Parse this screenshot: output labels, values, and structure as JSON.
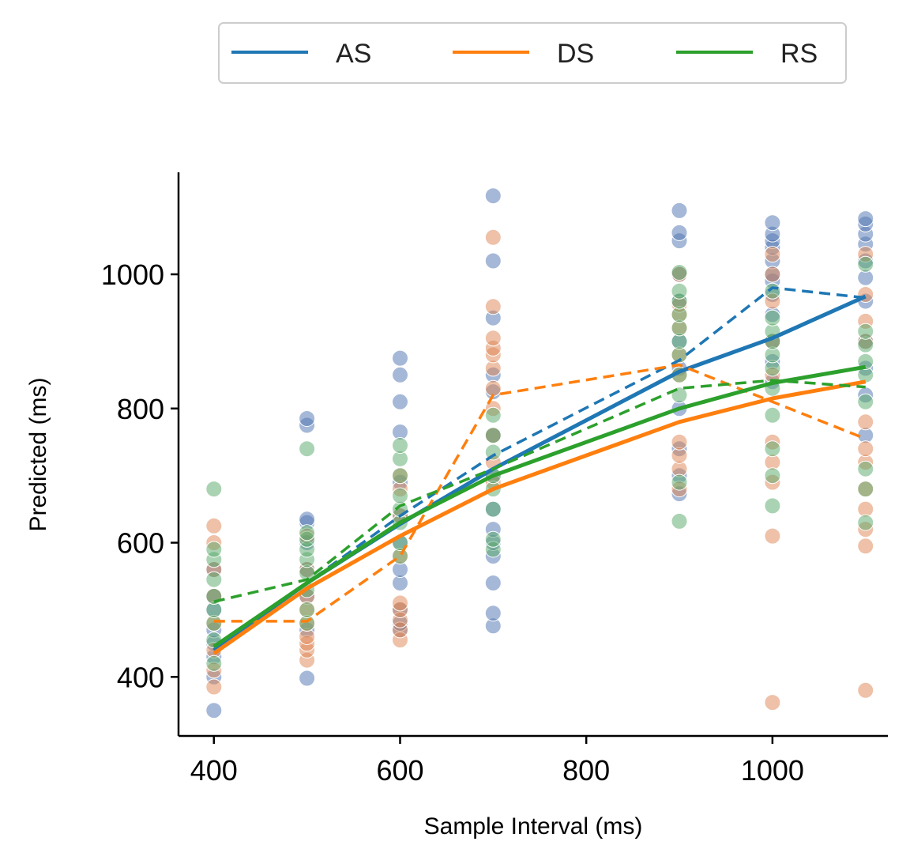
{
  "chart_data": {
    "type": "scatter",
    "xlabel": "Sample Interval (ms)",
    "ylabel": "Predicted (ms)",
    "xlim": [
      362,
      1124
    ],
    "ylim": [
      312,
      1152
    ],
    "x_ticks": [
      400,
      600,
      800,
      1000
    ],
    "y_ticks": [
      400,
      600,
      800,
      1000
    ],
    "grid": false,
    "legend": {
      "placement": "top-center",
      "entries": [
        {
          "label": "AS",
          "color": "#1f77b4"
        },
        {
          "label": "DS",
          "color": "#ff7f0e"
        },
        {
          "label": "RS",
          "color": "#2ca02c"
        }
      ]
    },
    "scatter_series": [
      {
        "name": "AS",
        "color": "#4c72b0",
        "points": [
          [
            400,
            350
          ],
          [
            400,
            400
          ],
          [
            400,
            430
          ],
          [
            400,
            450
          ],
          [
            400,
            470
          ],
          [
            400,
            500
          ],
          [
            400,
            520
          ],
          [
            400,
            560
          ],
          [
            500,
            398
          ],
          [
            500,
            470
          ],
          [
            500,
            520
          ],
          [
            500,
            560
          ],
          [
            500,
            600
          ],
          [
            500,
            630
          ],
          [
            500,
            635
          ],
          [
            500,
            775
          ],
          [
            500,
            785
          ],
          [
            600,
            470
          ],
          [
            600,
            480
          ],
          [
            600,
            500
          ],
          [
            600,
            540
          ],
          [
            600,
            560
          ],
          [
            600,
            600
          ],
          [
            600,
            640
          ],
          [
            600,
            690
          ],
          [
            600,
            765
          ],
          [
            600,
            810
          ],
          [
            600,
            850
          ],
          [
            600,
            875
          ],
          [
            700,
            476
          ],
          [
            700,
            495
          ],
          [
            700,
            540
          ],
          [
            700,
            580
          ],
          [
            700,
            600
          ],
          [
            700,
            620
          ],
          [
            700,
            650
          ],
          [
            700,
            700
          ],
          [
            700,
            760
          ],
          [
            700,
            825
          ],
          [
            700,
            850
          ],
          [
            700,
            935
          ],
          [
            700,
            1020
          ],
          [
            700,
            1117
          ],
          [
            900,
            673
          ],
          [
            900,
            700
          ],
          [
            900,
            740
          ],
          [
            900,
            800
          ],
          [
            900,
            860
          ],
          [
            900,
            900
          ],
          [
            900,
            960
          ],
          [
            900,
            1000
          ],
          [
            900,
            1050
          ],
          [
            900,
            1062
          ],
          [
            900,
            1095
          ],
          [
            1000,
            840
          ],
          [
            1000,
            870
          ],
          [
            1000,
            900
          ],
          [
            1000,
            940
          ],
          [
            1000,
            970
          ],
          [
            1000,
            990
          ],
          [
            1000,
            1000
          ],
          [
            1000,
            1020
          ],
          [
            1000,
            1040
          ],
          [
            1000,
            1050
          ],
          [
            1000,
            1060
          ],
          [
            1000,
            1077
          ],
          [
            1100,
            760
          ],
          [
            1100,
            820
          ],
          [
            1100,
            860
          ],
          [
            1100,
            900
          ],
          [
            1100,
            960
          ],
          [
            1100,
            995
          ],
          [
            1100,
            1020
          ],
          [
            1100,
            1045
          ],
          [
            1100,
            1060
          ],
          [
            1100,
            1075
          ],
          [
            1100,
            1083
          ]
        ]
      },
      {
        "name": "DS",
        "color": "#dd8452",
        "points": [
          [
            400,
            385
          ],
          [
            400,
            410
          ],
          [
            400,
            440
          ],
          [
            400,
            480
          ],
          [
            400,
            520
          ],
          [
            400,
            560
          ],
          [
            400,
            600
          ],
          [
            400,
            625
          ],
          [
            500,
            425
          ],
          [
            500,
            440
          ],
          [
            500,
            450
          ],
          [
            500,
            460
          ],
          [
            500,
            480
          ],
          [
            500,
            500
          ],
          [
            500,
            520
          ],
          [
            500,
            560
          ],
          [
            500,
            610
          ],
          [
            600,
            455
          ],
          [
            600,
            470
          ],
          [
            600,
            485
          ],
          [
            600,
            500
          ],
          [
            600,
            510
          ],
          [
            600,
            580
          ],
          [
            600,
            640
          ],
          [
            600,
            680
          ],
          [
            600,
            700
          ],
          [
            700,
            690
          ],
          [
            700,
            720
          ],
          [
            700,
            760
          ],
          [
            700,
            800
          ],
          [
            700,
            830
          ],
          [
            700,
            860
          ],
          [
            700,
            880
          ],
          [
            700,
            890
          ],
          [
            700,
            905
          ],
          [
            700,
            952
          ],
          [
            700,
            1055
          ],
          [
            900,
            680
          ],
          [
            900,
            710
          ],
          [
            900,
            730
          ],
          [
            900,
            750
          ],
          [
            900,
            850
          ],
          [
            900,
            880
          ],
          [
            900,
            920
          ],
          [
            900,
            940
          ],
          [
            900,
            955
          ],
          [
            900,
            1000
          ],
          [
            1000,
            362
          ],
          [
            1000,
            610
          ],
          [
            1000,
            690
          ],
          [
            1000,
            720
          ],
          [
            1000,
            750
          ],
          [
            1000,
            850
          ],
          [
            1000,
            900
          ],
          [
            1000,
            960
          ],
          [
            1000,
            1000
          ],
          [
            1000,
            1030
          ],
          [
            1100,
            380
          ],
          [
            1100,
            595
          ],
          [
            1100,
            620
          ],
          [
            1100,
            650
          ],
          [
            1100,
            680
          ],
          [
            1100,
            720
          ],
          [
            1100,
            740
          ],
          [
            1100,
            780
          ],
          [
            1100,
            900
          ],
          [
            1100,
            930
          ],
          [
            1100,
            970
          ],
          [
            1100,
            1030
          ]
        ]
      },
      {
        "name": "RS",
        "color": "#55a868",
        "points": [
          [
            400,
            420
          ],
          [
            400,
            455
          ],
          [
            400,
            480
          ],
          [
            400,
            500
          ],
          [
            400,
            520
          ],
          [
            400,
            545
          ],
          [
            400,
            575
          ],
          [
            400,
            590
          ],
          [
            400,
            680
          ],
          [
            500,
            480
          ],
          [
            500,
            500
          ],
          [
            500,
            530
          ],
          [
            500,
            555
          ],
          [
            500,
            575
          ],
          [
            500,
            590
          ],
          [
            500,
            605
          ],
          [
            500,
            615
          ],
          [
            500,
            740
          ],
          [
            600,
            580
          ],
          [
            600,
            600
          ],
          [
            600,
            630
          ],
          [
            600,
            650
          ],
          [
            600,
            670
          ],
          [
            600,
            700
          ],
          [
            600,
            725
          ],
          [
            600,
            745
          ],
          [
            700,
            590
          ],
          [
            700,
            605
          ],
          [
            700,
            650
          ],
          [
            700,
            680
          ],
          [
            700,
            700
          ],
          [
            700,
            735
          ],
          [
            700,
            760
          ],
          [
            700,
            790
          ],
          [
            900,
            632
          ],
          [
            900,
            690
          ],
          [
            900,
            820
          ],
          [
            900,
            850
          ],
          [
            900,
            880
          ],
          [
            900,
            900
          ],
          [
            900,
            920
          ],
          [
            900,
            940
          ],
          [
            900,
            960
          ],
          [
            900,
            975
          ],
          [
            900,
            1003
          ],
          [
            1000,
            655
          ],
          [
            1000,
            700
          ],
          [
            1000,
            740
          ],
          [
            1000,
            790
          ],
          [
            1000,
            830
          ],
          [
            1000,
            860
          ],
          [
            1000,
            880
          ],
          [
            1000,
            900
          ],
          [
            1000,
            915
          ],
          [
            1000,
            935
          ],
          [
            1000,
            975
          ],
          [
            1100,
            630
          ],
          [
            1100,
            680
          ],
          [
            1100,
            710
          ],
          [
            1100,
            810
          ],
          [
            1100,
            850
          ],
          [
            1100,
            870
          ],
          [
            1100,
            895
          ],
          [
            1100,
            915
          ],
          [
            1100,
            1015
          ]
        ]
      }
    ],
    "line_series": [
      {
        "name": "AS",
        "style": "solid",
        "color": "#1f77b4",
        "x": [
          400,
          500,
          600,
          700,
          900,
          1000,
          1100
        ],
        "y": [
          440,
          540,
          628,
          710,
          855,
          905,
          967
        ]
      },
      {
        "name": "AS",
        "style": "dashed",
        "color": "#1f77b4",
        "x": [
          400,
          500,
          600,
          700,
          900,
          1000,
          1100
        ],
        "y": [
          445,
          540,
          640,
          730,
          872,
          980,
          965
        ]
      },
      {
        "name": "DS",
        "style": "solid",
        "color": "#ff7f0e",
        "x": [
          400,
          500,
          600,
          700,
          900,
          1000,
          1100
        ],
        "y": [
          435,
          532,
          610,
          680,
          780,
          815,
          840
        ]
      },
      {
        "name": "DS",
        "style": "dashed",
        "color": "#ff7f0e",
        "x": [
          400,
          500,
          600,
          700,
          900,
          1000,
          1100
        ],
        "y": [
          483,
          483,
          580,
          820,
          865,
          810,
          755
        ]
      },
      {
        "name": "RS",
        "style": "solid",
        "color": "#2ca02c",
        "x": [
          400,
          500,
          600,
          700,
          900,
          1000,
          1100
        ],
        "y": [
          445,
          540,
          630,
          700,
          800,
          838,
          862
        ]
      },
      {
        "name": "RS",
        "style": "dashed",
        "color": "#2ca02c",
        "x": [
          400,
          500,
          600,
          700,
          900,
          1000,
          1100
        ],
        "y": [
          512,
          545,
          655,
          710,
          830,
          842,
          832
        ]
      }
    ]
  }
}
